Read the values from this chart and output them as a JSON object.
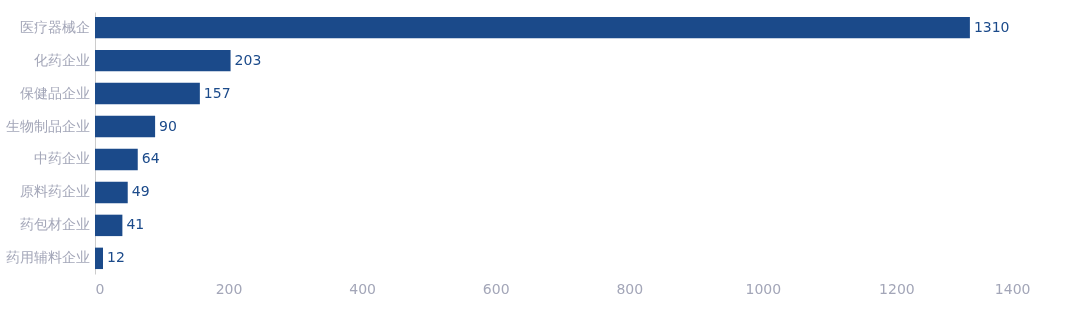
{
  "chart_data": {
    "type": "bar",
    "orientation": "horizontal",
    "categories": [
      "医疗器械企",
      "化药企业",
      "保健品企业",
      "生物制品企业",
      "中药企业",
      "原料药企业",
      "药包材企业",
      "药用辅料企业"
    ],
    "values": [
      1310,
      203,
      157,
      90,
      64,
      49,
      41,
      12
    ],
    "color": "#1b4a8a",
    "xlim": [
      0,
      1400
    ],
    "xticks": [
      0,
      200,
      400,
      600,
      800,
      1000,
      1200,
      1400
    ],
    "grid": false,
    "data_labels": true
  }
}
